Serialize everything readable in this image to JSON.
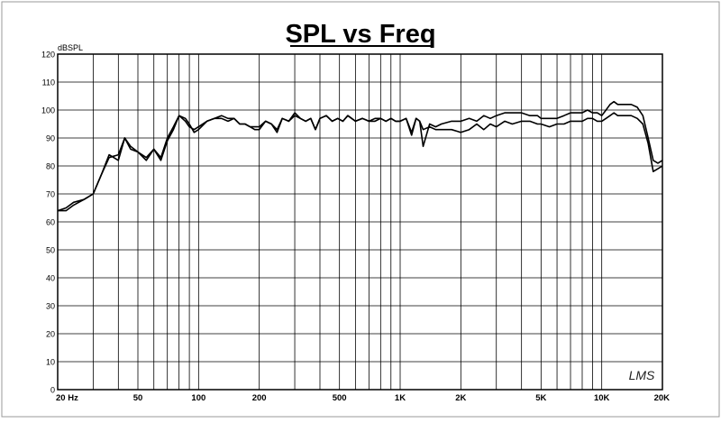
{
  "chart_data": {
    "type": "line",
    "title": "SPL vs Freq",
    "ylabel": "dBSPL",
    "xlabel": "",
    "x_scale": "log",
    "xlim": [
      20,
      20000
    ],
    "ylim": [
      0,
      120
    ],
    "grid": true,
    "legend": "none",
    "watermark": "LMS",
    "y_ticks": [
      0,
      10,
      20,
      30,
      40,
      50,
      60,
      70,
      80,
      90,
      100,
      110,
      120
    ],
    "x_tick_labels": [
      {
        "value": 20,
        "label": "20  Hz"
      },
      {
        "value": 50,
        "label": "50"
      },
      {
        "value": 100,
        "label": "100"
      },
      {
        "value": 200,
        "label": "200"
      },
      {
        "value": 500,
        "label": "500"
      },
      {
        "value": 1000,
        "label": "1K"
      },
      {
        "value": 2000,
        "label": "2K"
      },
      {
        "value": 5000,
        "label": "5K"
      },
      {
        "value": 10000,
        "label": "10K"
      },
      {
        "value": 20000,
        "label": "20K"
      }
    ],
    "series": [
      {
        "x": [
          20,
          22,
          24,
          27,
          30,
          33,
          36,
          40,
          43,
          46,
          50,
          55,
          60,
          65,
          70,
          75,
          80,
          86,
          90,
          95,
          100,
          110,
          120,
          130,
          140,
          150,
          160,
          170,
          180,
          190,
          200,
          215,
          230,
          245,
          260,
          280,
          300,
          320,
          340,
          360,
          380,
          400,
          430,
          460,
          490,
          520,
          550,
          600,
          650,
          700,
          750,
          800,
          850,
          900,
          950,
          1000,
          1070,
          1140,
          1200,
          1250,
          1300,
          1400,
          1500,
          1600,
          1800,
          2000,
          2200,
          2400,
          2600,
          2800,
          3000,
          3300,
          3600,
          4000,
          4400,
          4800,
          5000,
          5500,
          6000,
          6500,
          7000,
          7500,
          8000,
          8500,
          9000,
          9500,
          10000,
          10500,
          11000,
          11500,
          12000,
          13000,
          14000,
          15000,
          16000,
          17000,
          18000,
          19000,
          20000
        ],
        "y": [
          64,
          65,
          67,
          68,
          70,
          77,
          83,
          84,
          90,
          87,
          85,
          83,
          86,
          83,
          90,
          94,
          98,
          96,
          94,
          93,
          94,
          96,
          97,
          97,
          96,
          97,
          95,
          95,
          94,
          94,
          94,
          96,
          95,
          93,
          97,
          96,
          98,
          97,
          96,
          97,
          93,
          97,
          98,
          96,
          97,
          96,
          98,
          96,
          97,
          96,
          96,
          97,
          96,
          97,
          96,
          96,
          97,
          92,
          97,
          96,
          93,
          94,
          93,
          93,
          93,
          92,
          93,
          95,
          93,
          95,
          94,
          96,
          95,
          96,
          96,
          95,
          95,
          94,
          95,
          95,
          96,
          96,
          96,
          97,
          97,
          96,
          96,
          97,
          98,
          99,
          98,
          98,
          98,
          97,
          95,
          88,
          78,
          79,
          80
        ]
      },
      {
        "x": [
          20,
          22,
          24,
          27,
          30,
          33,
          36,
          40,
          43,
          46,
          50,
          55,
          60,
          65,
          70,
          75,
          80,
          86,
          90,
          95,
          100,
          110,
          120,
          130,
          140,
          150,
          160,
          170,
          180,
          190,
          200,
          215,
          230,
          245,
          260,
          280,
          300,
          320,
          340,
          360,
          380,
          400,
          430,
          460,
          490,
          520,
          550,
          600,
          650,
          700,
          750,
          800,
          850,
          900,
          950,
          1000,
          1070,
          1140,
          1200,
          1250,
          1300,
          1400,
          1500,
          1600,
          1800,
          2000,
          2200,
          2400,
          2600,
          2800,
          3000,
          3300,
          3600,
          4000,
          4400,
          4800,
          5000,
          5500,
          6000,
          6500,
          7000,
          7500,
          8000,
          8500,
          9000,
          9500,
          10000,
          10500,
          11000,
          11500,
          12000,
          13000,
          14000,
          15000,
          16000,
          17000,
          18000,
          19000,
          20000
        ],
        "y": [
          64,
          64,
          66,
          68,
          70,
          77,
          84,
          82,
          90,
          86,
          85,
          82,
          86,
          82,
          89,
          93,
          98,
          97,
          95,
          92,
          93,
          96,
          97,
          98,
          97,
          97,
          95,
          95,
          94,
          93,
          93,
          96,
          95,
          92,
          97,
          96,
          99,
          97,
          96,
          97,
          93,
          97,
          98,
          96,
          97,
          96,
          98,
          96,
          97,
          96,
          97,
          97,
          96,
          97,
          96,
          96,
          97,
          91,
          97,
          96,
          87,
          95,
          94,
          95,
          96,
          96,
          97,
          96,
          98,
          97,
          98,
          99,
          99,
          99,
          98,
          98,
          97,
          97,
          97,
          98,
          99,
          99,
          99,
          100,
          99,
          99,
          98,
          100,
          102,
          103,
          102,
          102,
          102,
          101,
          98,
          90,
          82,
          81,
          82
        ]
      }
    ]
  }
}
